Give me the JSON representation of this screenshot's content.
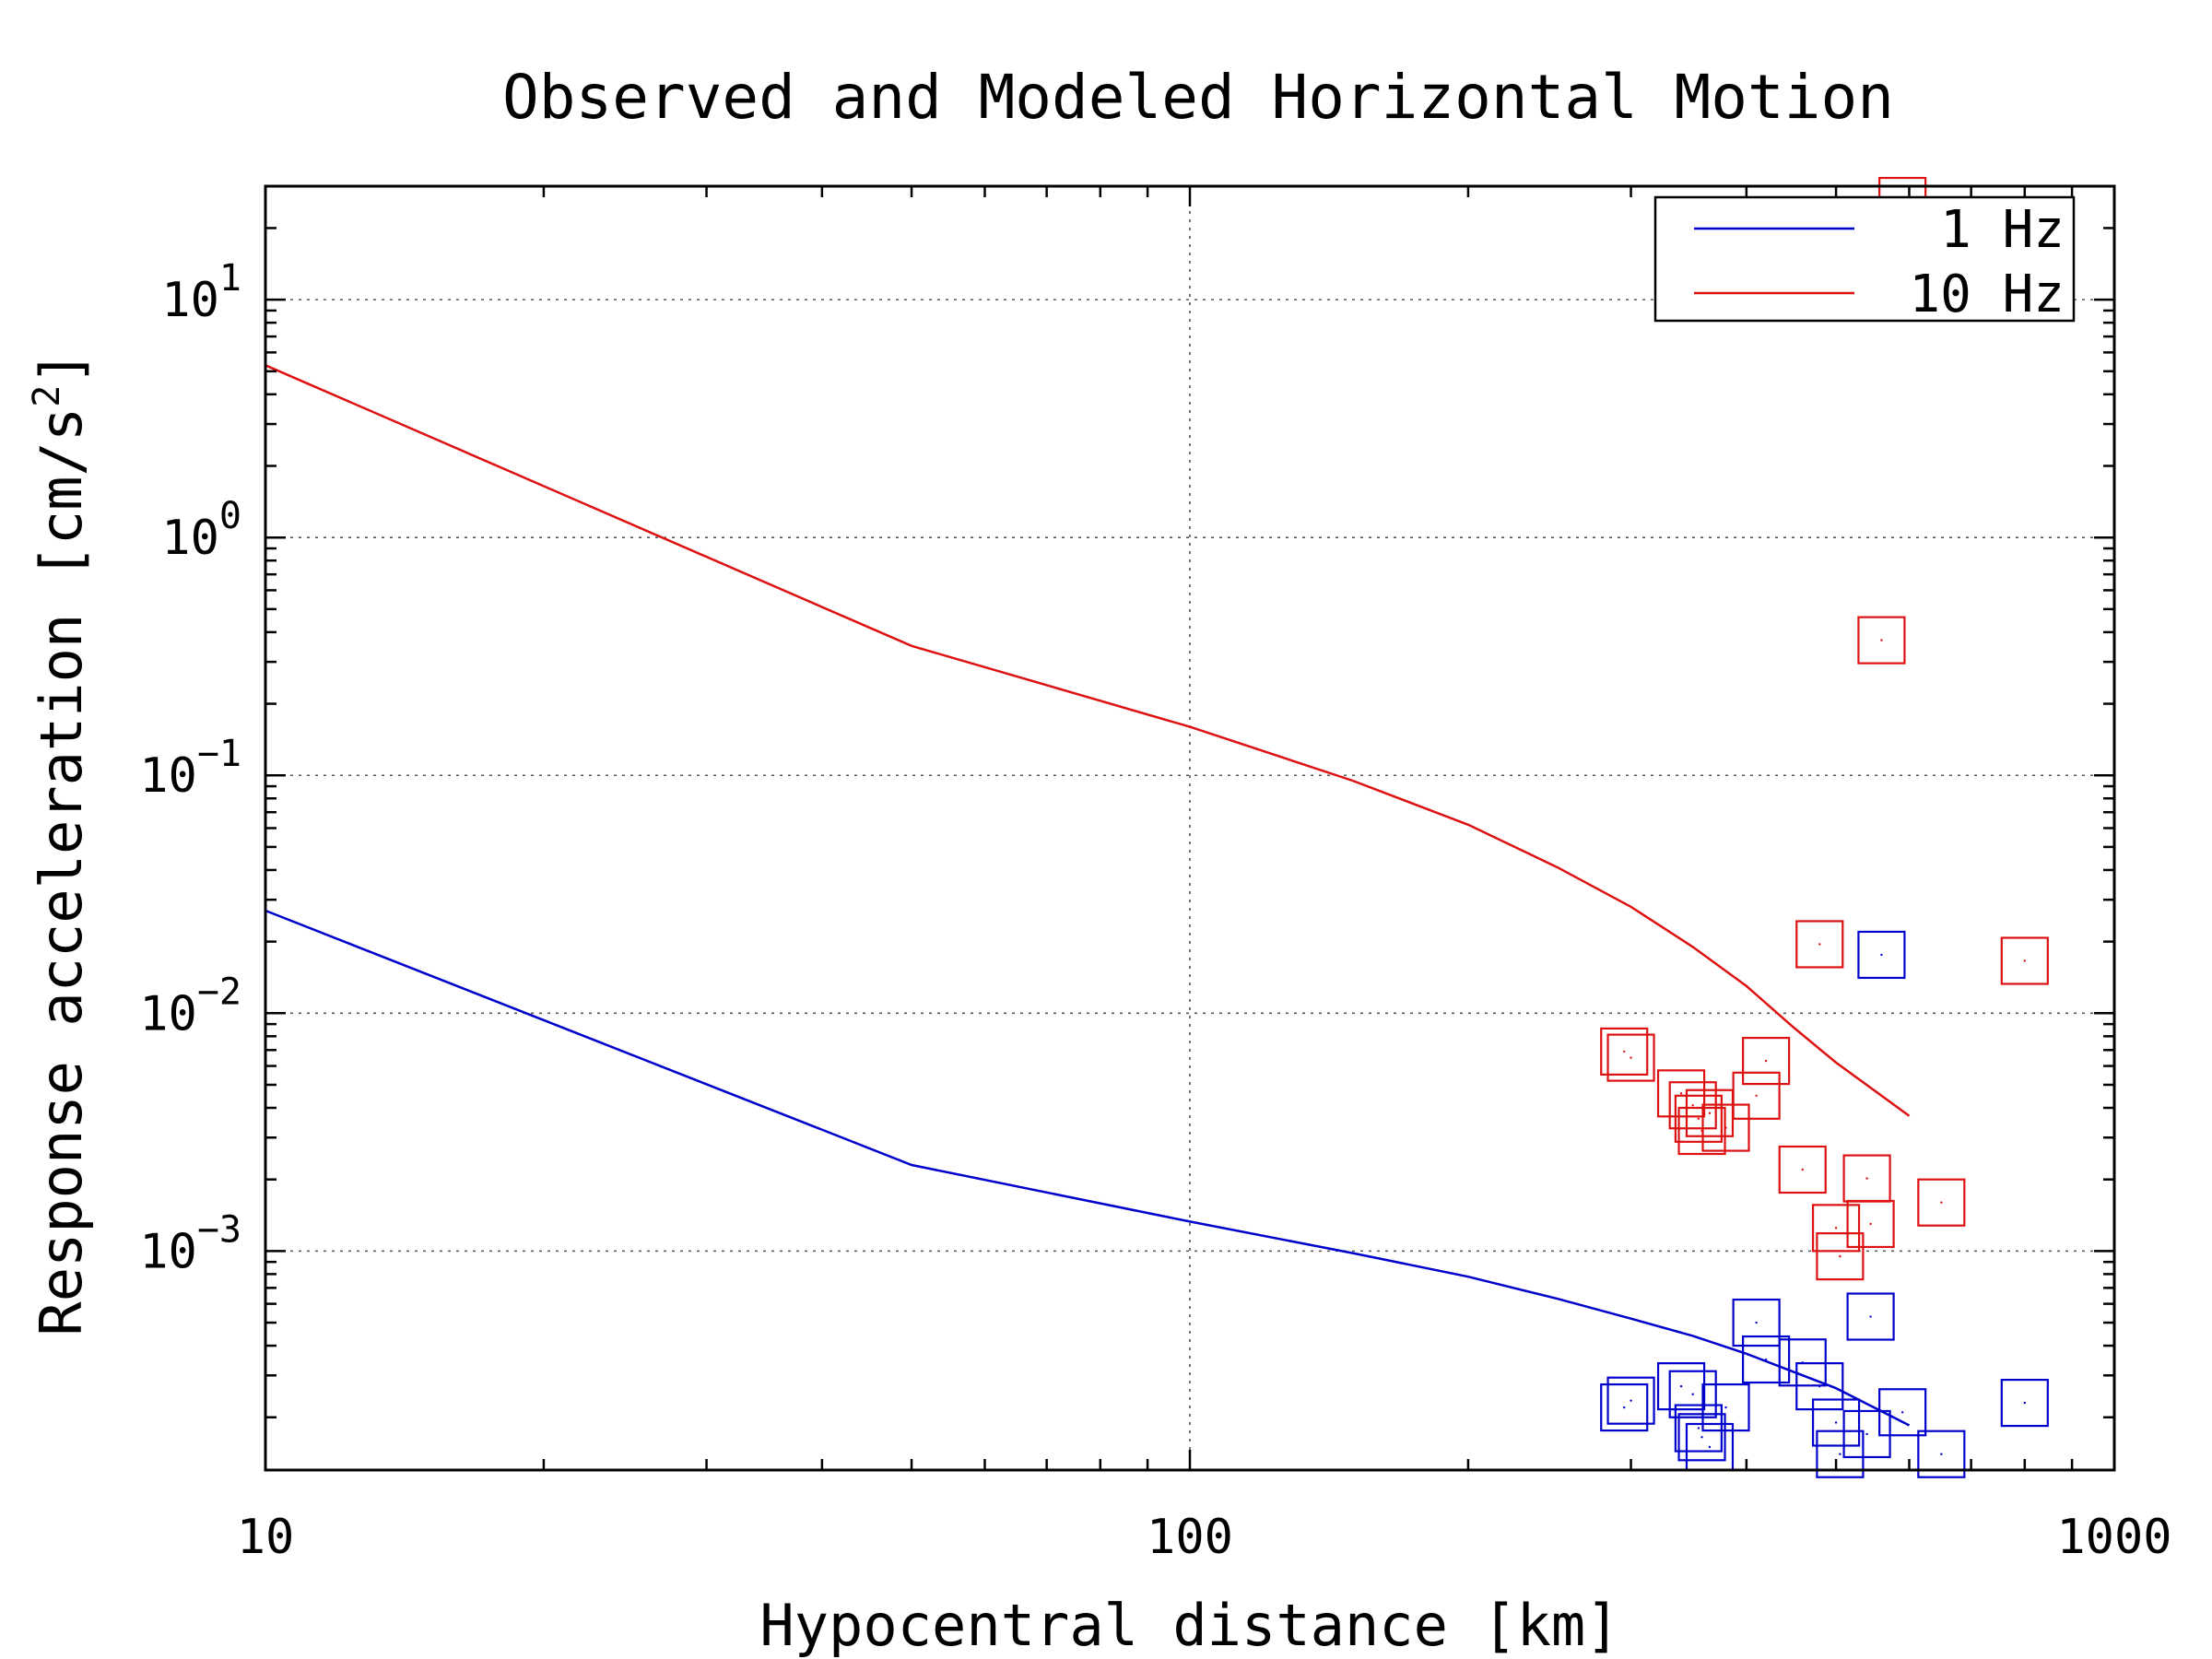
{
  "chart_data": {
    "type": "line",
    "title": "Observed and Modeled Horizontal Motion",
    "xlabel": "Hypocentral distance [km]",
    "ylabel_prefix": "Response acceleration [cm/s",
    "ylabel_sup": "2",
    "ylabel_suffix": "]",
    "xscale": "log",
    "yscale": "log",
    "xlim": [
      10,
      1000
    ],
    "ylim": [
      0.00012,
      30
    ],
    "grid": true,
    "legend_position": "top-right",
    "x_ticks": [
      {
        "value": 10,
        "label": "10"
      },
      {
        "value": 100,
        "label": "100"
      },
      {
        "value": 1000,
        "label": "1000"
      }
    ],
    "y_ticks": [
      {
        "value": 10,
        "base": "10",
        "exp": "1"
      },
      {
        "value": 1,
        "base": "10",
        "exp": "0"
      },
      {
        "value": 0.1,
        "base": "10",
        "exp": "−1"
      },
      {
        "value": 0.01,
        "base": "10",
        "exp": "−2"
      },
      {
        "value": 0.001,
        "base": "10",
        "exp": "−3"
      }
    ],
    "series": [
      {
        "name": "1 Hz",
        "color": "#0000cc",
        "line": {
          "x": [
            10,
            50,
            100,
            150,
            200,
            250,
            300,
            350,
            400,
            450,
            500,
            600
          ],
          "y": [
            0.027,
            0.0023,
            0.00133,
            0.00098,
            0.00078,
            0.00063,
            0.00052,
            0.00044,
            0.00037,
            0.00031,
            0.000265,
            0.000185
          ]
        },
        "observed": {
          "x": [
            295,
            300,
            340,
            350,
            355,
            358,
            365,
            380,
            410,
            420,
            460,
            480,
            500,
            505,
            540,
            545,
            560,
            590,
            650,
            800
          ],
          "y": [
            0.00022,
            0.000235,
            0.00027,
            0.00025,
            0.00018,
            0.000165,
            0.00015,
            0.00022,
            0.0005,
            0.00035,
            0.00034,
            0.00027,
            0.00019,
            0.00014,
            0.00017,
            0.00053,
            0.0176,
            0.00021,
            0.00014,
            0.00023
          ]
        }
      },
      {
        "name": "10 Hz",
        "color": "#dd1111",
        "line": {
          "x": [
            10,
            50,
            100,
            150,
            200,
            250,
            300,
            350,
            400,
            450,
            500,
            600
          ],
          "y": [
            5.3,
            0.35,
            0.16,
            0.095,
            0.062,
            0.041,
            0.028,
            0.019,
            0.013,
            0.0087,
            0.0062,
            0.0037
          ]
        },
        "observed": {
          "x": [
            295,
            300,
            340,
            350,
            355,
            358,
            365,
            380,
            410,
            420,
            460,
            480,
            500,
            505,
            540,
            545,
            560,
            590,
            650,
            800
          ],
          "y": [
            0.0069,
            0.0065,
            0.0046,
            0.0041,
            0.0036,
            0.0032,
            0.0038,
            0.0033,
            0.0045,
            0.0063,
            0.0022,
            0.0195,
            0.00125,
            0.00095,
            0.00202,
            0.0013,
            0.37,
            26.0,
            0.0016,
            0.0166
          ]
        }
      }
    ]
  }
}
